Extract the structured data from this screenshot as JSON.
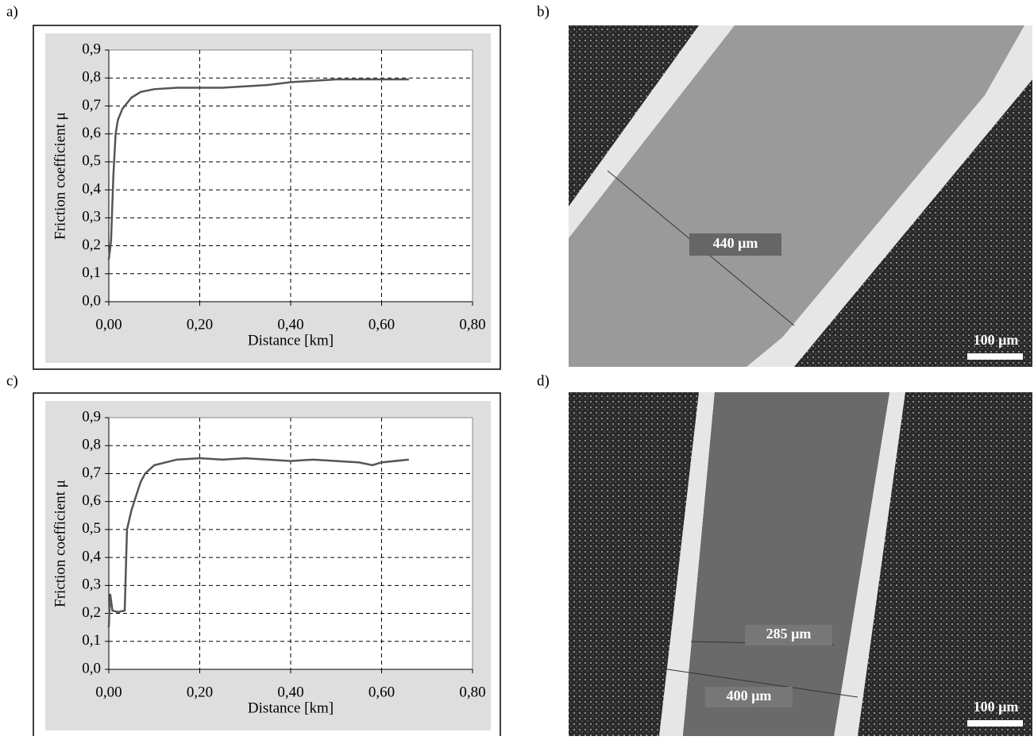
{
  "chart_data": [
    {
      "type": "line",
      "y_label": "Friction coefficient μ",
      "x_label": "Distance [km]",
      "x": [
        0,
        0.005,
        0.01,
        0.015,
        0.02,
        0.03,
        0.05,
        0.07,
        0.1,
        0.15,
        0.2,
        0.25,
        0.3,
        0.35,
        0.4,
        0.45,
        0.5,
        0.55,
        0.6,
        0.66
      ],
      "values": [
        0.15,
        0.22,
        0.45,
        0.6,
        0.65,
        0.69,
        0.73,
        0.75,
        0.76,
        0.765,
        0.765,
        0.765,
        0.77,
        0.775,
        0.785,
        0.79,
        0.795,
        0.795,
        0.795,
        0.795
      ],
      "color": "#555555",
      "grid": true,
      "xlim": [
        0,
        0.8
      ],
      "ylim": [
        0,
        0.9
      ],
      "xticks": [
        {
          "value": 0,
          "label": "0,00"
        },
        {
          "value": 0.2,
          "label": "0,20"
        },
        {
          "value": 0.4,
          "label": "0,40"
        },
        {
          "value": 0.6,
          "label": "0,60"
        },
        {
          "value": 0.8,
          "label": "0,80"
        }
      ],
      "yticks": [
        {
          "value": 0,
          "label": "0,0"
        },
        {
          "value": 0.1,
          "label": "0,1"
        },
        {
          "value": 0.2,
          "label": "0,2"
        },
        {
          "value": 0.3,
          "label": "0,3"
        },
        {
          "value": 0.4,
          "label": "0,4"
        },
        {
          "value": 0.5,
          "label": "0,5"
        },
        {
          "value": 0.6,
          "label": "0,6"
        },
        {
          "value": 0.7,
          "label": "0,7"
        },
        {
          "value": 0.8,
          "label": "0,8"
        },
        {
          "value": 0.9,
          "label": "0,9"
        }
      ]
    },
    {
      "type": "line",
      "y_label": "Friction coefficient μ",
      "x_label": "Distance [km]",
      "x": [
        0,
        0.003,
        0.008,
        0.02,
        0.035,
        0.04,
        0.05,
        0.06,
        0.07,
        0.08,
        0.1,
        0.15,
        0.2,
        0.25,
        0.3,
        0.35,
        0.4,
        0.45,
        0.5,
        0.55,
        0.58,
        0.6,
        0.66
      ],
      "values": [
        0.15,
        0.27,
        0.21,
        0.205,
        0.21,
        0.5,
        0.57,
        0.62,
        0.67,
        0.7,
        0.73,
        0.75,
        0.755,
        0.75,
        0.755,
        0.75,
        0.745,
        0.75,
        0.745,
        0.74,
        0.73,
        0.74,
        0.75
      ],
      "color": "#555555",
      "grid": true,
      "xlim": [
        0,
        0.8
      ],
      "ylim": [
        0,
        0.9
      ],
      "xticks": [
        {
          "value": 0,
          "label": "0,00"
        },
        {
          "value": 0.2,
          "label": "0,20"
        },
        {
          "value": 0.4,
          "label": "0,40"
        },
        {
          "value": 0.6,
          "label": "0,60"
        },
        {
          "value": 0.8,
          "label": "0,80"
        }
      ],
      "yticks": [
        {
          "value": 0,
          "label": "0,0"
        },
        {
          "value": 0.1,
          "label": "0,1"
        },
        {
          "value": 0.2,
          "label": "0,2"
        },
        {
          "value": 0.3,
          "label": "0,3"
        },
        {
          "value": 0.4,
          "label": "0,4"
        },
        {
          "value": 0.5,
          "label": "0,5"
        },
        {
          "value": 0.6,
          "label": "0,6"
        },
        {
          "value": 0.7,
          "label": "0,7"
        },
        {
          "value": 0.8,
          "label": "0,8"
        },
        {
          "value": 0.9,
          "label": "0,9"
        }
      ]
    }
  ],
  "panel_labels": [
    "a)",
    "b)",
    "c)",
    "d)"
  ],
  "micrographs": [
    {
      "labels": [
        "440 µm"
      ],
      "scale_bar": "100 µm"
    },
    {
      "labels": [
        "285 µm",
        "400 µm"
      ],
      "scale_bar": "100 µm"
    }
  ]
}
